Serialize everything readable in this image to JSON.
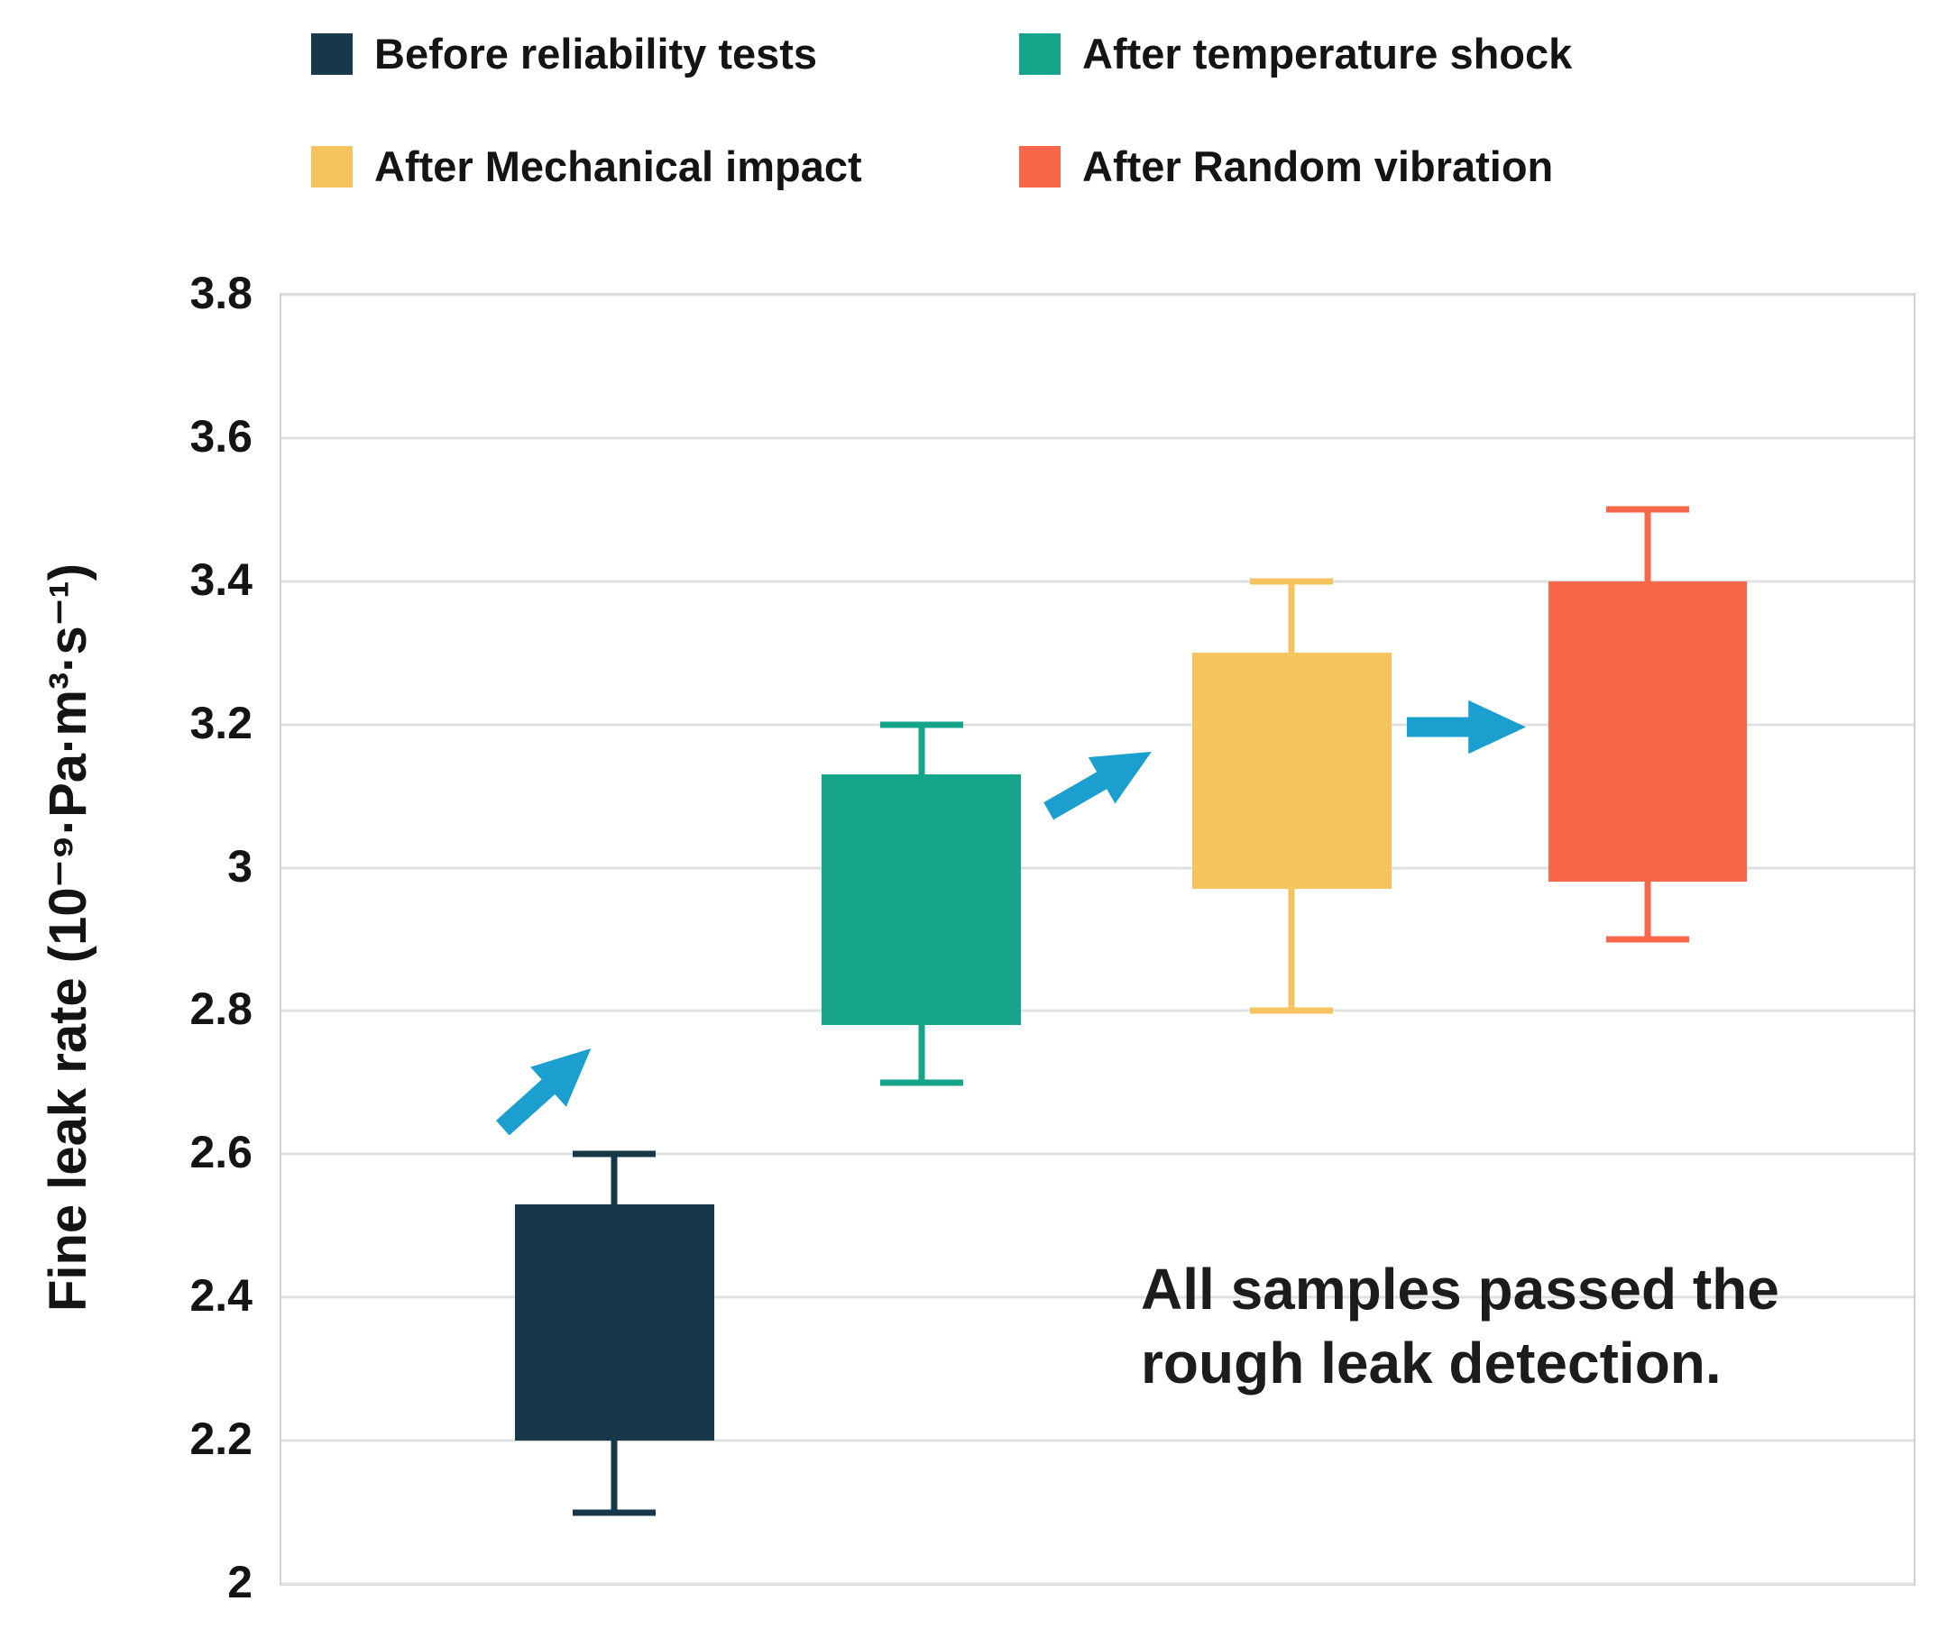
{
  "legend": {
    "items": [
      {
        "label": "Before reliability tests",
        "color": "#16384a"
      },
      {
        "label": "After temperature shock",
        "color": "#16a58b"
      },
      {
        "label": "After Mechanical impact",
        "color": "#f5c45f"
      },
      {
        "label": "After Random vibration",
        "color": "#f9674b"
      }
    ]
  },
  "annotation": {
    "line1": "All samples passed the",
    "line2": "rough leak detection."
  },
  "chart_data": {
    "type": "box",
    "title": "",
    "xlabel": "",
    "ylabel": "Fine leak rate (10⁻⁹·Pa·m³·s⁻¹)",
    "ylim": [
      2,
      3.8
    ],
    "yticks": [
      2,
      2.2,
      2.4,
      2.6,
      2.8,
      3,
      3.2,
      3.4,
      3.6,
      3.8
    ],
    "ytick_labels": [
      "2",
      "2.2",
      "2.4",
      "2.6",
      "2.8",
      "3",
      "3.2",
      "3.4",
      "3.6",
      "3.8"
    ],
    "grid": true,
    "legend_position": "top",
    "arrow_color": "#1b9fce",
    "box_width_pct": 12.2,
    "series": [
      {
        "name": "Before reliability tests",
        "color": "#16384a",
        "x_center_pct": 20.4,
        "box_low": 2.2,
        "box_high": 2.53,
        "whisker_low": 2.1,
        "whisker_high": 2.6
      },
      {
        "name": "After temperature shock",
        "color": "#16a58b",
        "x_center_pct": 39.2,
        "box_low": 2.78,
        "box_high": 3.13,
        "whisker_low": 2.7,
        "whisker_high": 3.2
      },
      {
        "name": "After Mechanical impact",
        "color": "#f5c45f",
        "x_center_pct": 61.9,
        "box_low": 2.97,
        "box_high": 3.3,
        "whisker_low": 2.8,
        "whisker_high": 3.4
      },
      {
        "name": "After Random vibration",
        "color": "#f9674b",
        "x_center_pct": 83.7,
        "box_low": 2.98,
        "box_high": 3.4,
        "whisker_low": 2.9,
        "whisker_high": 3.5
      }
    ]
  }
}
